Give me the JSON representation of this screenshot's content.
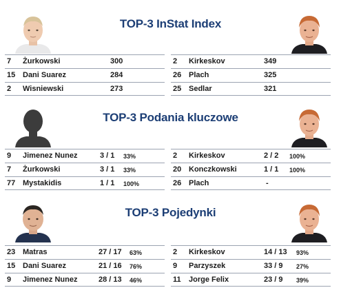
{
  "sections": [
    {
      "title": "TOP-3 InStat Index",
      "left": [
        {
          "num": "7",
          "name": "Żurkowski",
          "val": "300",
          "pct": ""
        },
        {
          "num": "15",
          "name": "Dani Suarez",
          "val": "284",
          "pct": ""
        },
        {
          "num": "2",
          "name": "Wisniewski",
          "val": "273",
          "pct": ""
        }
      ],
      "right": [
        {
          "num": "2",
          "name": "Kirkeskov",
          "val": "349",
          "pct": ""
        },
        {
          "num": "26",
          "name": "Plach",
          "val": "325",
          "pct": ""
        },
        {
          "num": "25",
          "name": "Sedlar",
          "val": "321",
          "pct": ""
        }
      ]
    },
    {
      "title": "TOP-3 Podania kluczowe",
      "left": [
        {
          "num": "9",
          "name": "Jimenez Nunez",
          "val": "3 / 1",
          "pct": "33%"
        },
        {
          "num": "7",
          "name": "Żurkowski",
          "val": "3 / 1",
          "pct": "33%"
        },
        {
          "num": "77",
          "name": "Mystakidis",
          "val": "1 / 1",
          "pct": "100%"
        }
      ],
      "right": [
        {
          "num": "2",
          "name": "Kirkeskov",
          "val": "2 / 2",
          "pct": "100%"
        },
        {
          "num": "20",
          "name": "Konczkowski",
          "val": "1 / 1",
          "pct": "100%"
        },
        {
          "num": "26",
          "name": "Plach",
          "val": "-",
          "pct": ""
        }
      ]
    },
    {
      "title": "TOP-3 Pojedynki",
      "left": [
        {
          "num": "23",
          "name": "Matras",
          "val": "27 / 17",
          "pct": "63%"
        },
        {
          "num": "15",
          "name": "Dani Suarez",
          "val": "21 / 16",
          "pct": "76%"
        },
        {
          "num": "9",
          "name": "Jimenez Nunez",
          "val": "28 / 13",
          "pct": "46%"
        }
      ],
      "right": [
        {
          "num": "2",
          "name": "Kirkeskov",
          "val": "14 / 13",
          "pct": "93%"
        },
        {
          "num": "9",
          "name": "Parzyszek",
          "val": "33 / 9",
          "pct": "27%"
        },
        {
          "num": "11",
          "name": "Jorge Felix",
          "val": "23 / 9",
          "pct": "39%"
        }
      ]
    }
  ],
  "colors": {
    "title": "#1c3e75",
    "rule": "#9ba3b1",
    "text": "#1b1b1b"
  }
}
